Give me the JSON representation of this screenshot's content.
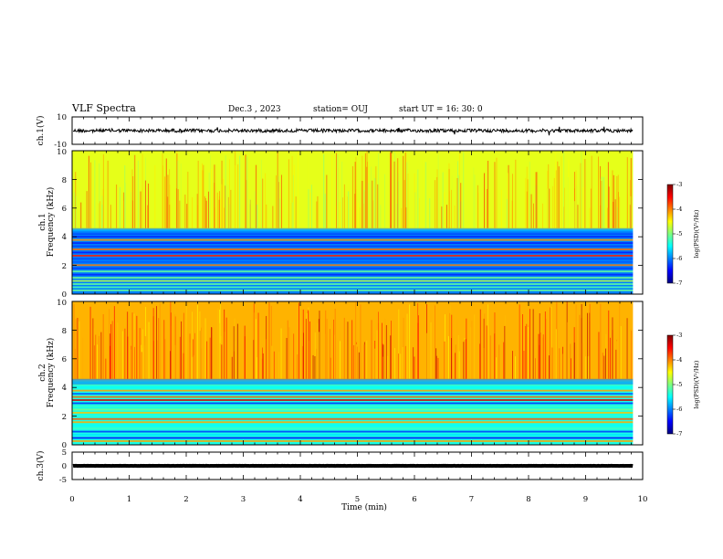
{
  "header": {
    "title": "VLF Spectra",
    "date": "Dec.3  , 2023",
    "station": "station= OUJ",
    "start_ut": "start  UT  =   16: 30: 0"
  },
  "chart_data": [
    {
      "type": "line",
      "panel": "ch1-waveform",
      "ylabel": "ch.1(V)",
      "ylim": [
        -10,
        10
      ],
      "yticks": [
        "10",
        "-10"
      ],
      "xlim": [
        0,
        10
      ],
      "series": [
        {
          "approx_level": 0,
          "approx_amplitude": 1.2
        }
      ]
    },
    {
      "type": "heatmap",
      "panel": "ch1-spectrogram",
      "ylabel": "Frequency  (kHz)",
      "ylabel_prefix": "ch.1",
      "ylim": [
        0,
        10
      ],
      "yticks": [
        "0",
        "2",
        "4",
        "6",
        "8",
        "10"
      ],
      "xlim": [
        0,
        10
      ],
      "data_extent_min": 9.83,
      "colorbar": {
        "label": "log(PSD)(V²/Hz)",
        "min": -7,
        "max": -3,
        "ticks": [
          "-3",
          "-4",
          "-5",
          "-6",
          "-7"
        ]
      },
      "bands": [
        {
          "f0": 0,
          "f1": 4.5,
          "level": -6.0
        },
        {
          "f0": 4.5,
          "f1": 10,
          "level": -4.6
        }
      ]
    },
    {
      "type": "heatmap",
      "panel": "ch2-spectrogram",
      "ylabel": "Frequency  (kHz)",
      "ylabel_prefix": "ch.2",
      "ylim": [
        0,
        10
      ],
      "yticks": [
        "0",
        "2",
        "4",
        "6",
        "8",
        "10"
      ],
      "xlim": [
        0,
        10
      ],
      "data_extent_min": 9.83,
      "colorbar": {
        "label": "log(PSD)(V²/Hz)",
        "min": -7,
        "max": -3,
        "ticks": [
          "-3",
          "-4",
          "-5",
          "-6",
          "-7"
        ]
      },
      "bands": [
        {
          "f0": 0,
          "f1": 4.5,
          "level": -5.4
        },
        {
          "f0": 4.5,
          "f1": 10,
          "level": -4.2
        }
      ]
    },
    {
      "type": "line",
      "panel": "ch3-waveform",
      "ylabel": "ch.3(V)",
      "ylim": [
        -5,
        5
      ],
      "yticks": [
        "5",
        "0",
        "-5"
      ],
      "xlim": [
        0,
        10
      ],
      "series": [
        {
          "approx_level": 0,
          "approx_amplitude": 0.3
        }
      ]
    }
  ],
  "xaxis": {
    "label": "Time  (min)",
    "ticks": [
      "0",
      "1",
      "2",
      "3",
      "4",
      "5",
      "6",
      "7",
      "8",
      "9",
      "10"
    ]
  },
  "colors": {
    "jet": [
      "#00007f",
      "#0000ff",
      "#007fff",
      "#00ffff",
      "#7fff7f",
      "#ffff00",
      "#ff7f00",
      "#ff0000",
      "#7f0000"
    ]
  }
}
